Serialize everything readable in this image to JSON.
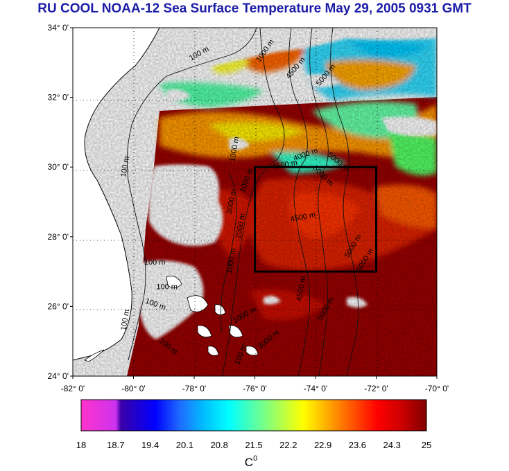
{
  "title": "RU COOL  NOAA-12 Sea Surface Temperature May 29, 2005 0931 GMT",
  "map": {
    "lat_labels": [
      "34° 0'",
      "32° 0'",
      "30° 0'",
      "28° 0'",
      "26° 0'",
      "24° 0'"
    ],
    "lon_labels": [
      "-82° 0'",
      "-80° 0'",
      "-78° 0'",
      "-76° 0'",
      "-74° 0'",
      "-72° 0'",
      "-70° 0'"
    ],
    "lat_range": [
      24,
      34
    ],
    "lon_range": [
      -82,
      -70
    ],
    "grid": true,
    "highlight_box": {
      "lon_min": -76,
      "lon_max": -72,
      "lat_min": 27,
      "lat_max": 30
    },
    "contour_labels": [
      {
        "text": "100 m",
        "lon": -77.8,
        "lat": 33.2,
        "rot": -30
      },
      {
        "text": "100 m",
        "lon": -80.2,
        "lat": 30.0,
        "rot": -80
      },
      {
        "text": "100 m",
        "lon": -79.3,
        "lat": 27.2,
        "rot": 0
      },
      {
        "text": "100 m",
        "lon": -78.9,
        "lat": 26.5,
        "rot": 0
      },
      {
        "text": "100 m",
        "lon": -80.2,
        "lat": 25.6,
        "rot": -80
      },
      {
        "text": "100 m",
        "lon": -79.3,
        "lat": 26.0,
        "rot": 20
      },
      {
        "text": "100 m",
        "lon": -78.9,
        "lat": 24.8,
        "rot": 40
      },
      {
        "text": "100 m",
        "lon": -76.4,
        "lat": 24.6,
        "rot": -70
      },
      {
        "text": "1000 m",
        "lon": -75.6,
        "lat": 33.3,
        "rot": -55
      },
      {
        "text": "4500 m",
        "lon": -74.6,
        "lat": 32.8,
        "rot": -50
      },
      {
        "text": "5000 m",
        "lon": -73.6,
        "lat": 32.6,
        "rot": -50
      },
      {
        "text": "1000 m",
        "lon": -76.6,
        "lat": 30.5,
        "rot": -80
      },
      {
        "text": "1000 m",
        "lon": -76.2,
        "lat": 29.6,
        "rot": -70
      },
      {
        "text": "4000 m",
        "lon": -74.3,
        "lat": 30.3,
        "rot": -20
      },
      {
        "text": "5000 m",
        "lon": -73.3,
        "lat": 30.1,
        "rot": 40
      },
      {
        "text": "4500 m",
        "lon": -75.0,
        "lat": 30.0,
        "rot": -10
      },
      {
        "text": "5000 m",
        "lon": -73.8,
        "lat": 29.7,
        "rot": 45
      },
      {
        "text": "3000 m",
        "lon": -76.7,
        "lat": 29.0,
        "rot": -80
      },
      {
        "text": "2000 m",
        "lon": -76.4,
        "lat": 28.3,
        "rot": -80
      },
      {
        "text": "4500 m",
        "lon": -74.4,
        "lat": 28.5,
        "rot": -10
      },
      {
        "text": "1000 m",
        "lon": -76.7,
        "lat": 27.3,
        "rot": -80
      },
      {
        "text": "5000 m",
        "lon": -72.7,
        "lat": 27.7,
        "rot": -60
      },
      {
        "text": "5000 m",
        "lon": -72.3,
        "lat": 27.3,
        "rot": -60
      },
      {
        "text": "4500 m",
        "lon": -74.4,
        "lat": 26.5,
        "rot": -80
      },
      {
        "text": "5000 m",
        "lon": -73.6,
        "lat": 25.9,
        "rot": -60
      },
      {
        "text": "1000 m",
        "lon": -76.3,
        "lat": 25.7,
        "rot": -30
      },
      {
        "text": "3000 m",
        "lon": -75.5,
        "lat": 25.0,
        "rot": -40
      }
    ]
  },
  "colorbar": {
    "ticks": [
      "18",
      "18.7",
      "19.4",
      "20.1",
      "20.8",
      "21.5",
      "22.2",
      "22.9",
      "23.6",
      "24.3",
      "25"
    ],
    "unit": "C",
    "unit_sup": "0",
    "range": [
      18,
      25
    ],
    "colors": [
      "#ff33cc",
      "#cc33ee",
      "#3b00a8",
      "#0000ff",
      "#1f6bff",
      "#00bfff",
      "#00ffff",
      "#55ffaa",
      "#aaff55",
      "#ffff00",
      "#ffaa00",
      "#ff5500",
      "#ff0000",
      "#cc0000",
      "#800000"
    ]
  }
}
